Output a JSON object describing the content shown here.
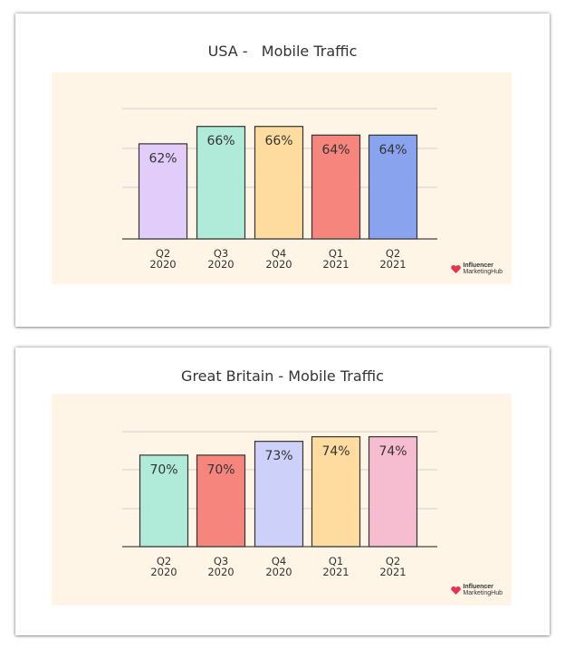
{
  "colors": {
    "panel_bg": "#fff5e6",
    "grid": "#cfcfcf",
    "axis": "#444444",
    "bar_border": "#333333",
    "text": "#333333",
    "brand": "#e8334e"
  },
  "brand": {
    "line1": "Influencer",
    "line2": "MarketingHub",
    "icon": "heart-logo-icon"
  },
  "chart_data": [
    {
      "type": "bar",
      "title": "USA -   Mobile Traffic",
      "categories": [
        "Q2\n2020",
        "Q3\n2020",
        "Q4\n2020",
        "Q1\n2021",
        "Q2\n2021"
      ],
      "values": [
        62,
        66,
        66,
        64,
        64
      ],
      "value_labels": [
        "62%",
        "66%",
        "66%",
        "64%",
        "64%"
      ],
      "bar_colors": [
        "#e2cdfa",
        "#b0ebd9",
        "#fedc9f",
        "#f5857d",
        "#8aa3ef"
      ],
      "ylim": [
        40,
        70
      ],
      "grid": true,
      "xlabel": "",
      "ylabel": ""
    },
    {
      "type": "bar",
      "title": "Great Britain - Mobile Traffic",
      "categories": [
        "Q2\n2020",
        "Q3\n2020",
        "Q4\n2020",
        "Q1\n2021",
        "Q2\n2021"
      ],
      "values": [
        70,
        70,
        73,
        74,
        74
      ],
      "value_labels": [
        "70%",
        "70%",
        "73%",
        "74%",
        "74%"
      ],
      "bar_colors": [
        "#b0ebd9",
        "#f5857d",
        "#cdd1f9",
        "#fedc9f",
        "#f6bdd0"
      ],
      "ylim": [
        50,
        75
      ],
      "grid": true,
      "xlabel": "",
      "ylabel": ""
    }
  ]
}
